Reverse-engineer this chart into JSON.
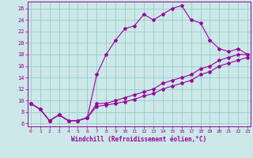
{
  "xlabel": "Windchill (Refroidissement éolien,°C)",
  "bg_color": "#cce8e8",
  "grid_color": "#99cccc",
  "line_color": "#990099",
  "x_ticks": [
    0,
    1,
    2,
    3,
    4,
    5,
    6,
    7,
    8,
    9,
    10,
    11,
    12,
    13,
    14,
    15,
    16,
    17,
    18,
    19,
    20,
    21,
    22,
    23
  ],
  "y_ticks": [
    6,
    8,
    10,
    12,
    14,
    16,
    18,
    20,
    22,
    24,
    26
  ],
  "xlim": [
    -0.3,
    23.3
  ],
  "ylim": [
    5.5,
    27.2
  ],
  "series1_y": [
    9.5,
    8.5,
    6.5,
    7.5,
    6.5,
    6.5,
    7.0,
    14.5,
    18.0,
    20.5,
    22.5,
    23.0,
    25.0,
    24.0,
    25.0,
    26.0,
    26.5,
    24.0,
    23.5,
    20.5,
    19.0,
    18.5,
    19.0,
    18.0
  ],
  "series2_y": [
    9.5,
    8.5,
    6.5,
    7.5,
    6.5,
    6.5,
    7.0,
    9.5,
    9.5,
    10.0,
    10.5,
    11.0,
    11.5,
    12.0,
    13.0,
    13.5,
    14.0,
    14.5,
    15.5,
    16.0,
    17.0,
    17.5,
    18.0,
    18.0
  ],
  "series3_y": [
    9.5,
    8.5,
    6.5,
    7.5,
    6.5,
    6.5,
    7.0,
    9.0,
    9.2,
    9.5,
    9.8,
    10.2,
    10.8,
    11.2,
    12.0,
    12.5,
    13.0,
    13.5,
    14.5,
    15.0,
    16.0,
    16.5,
    17.0,
    17.5
  ]
}
